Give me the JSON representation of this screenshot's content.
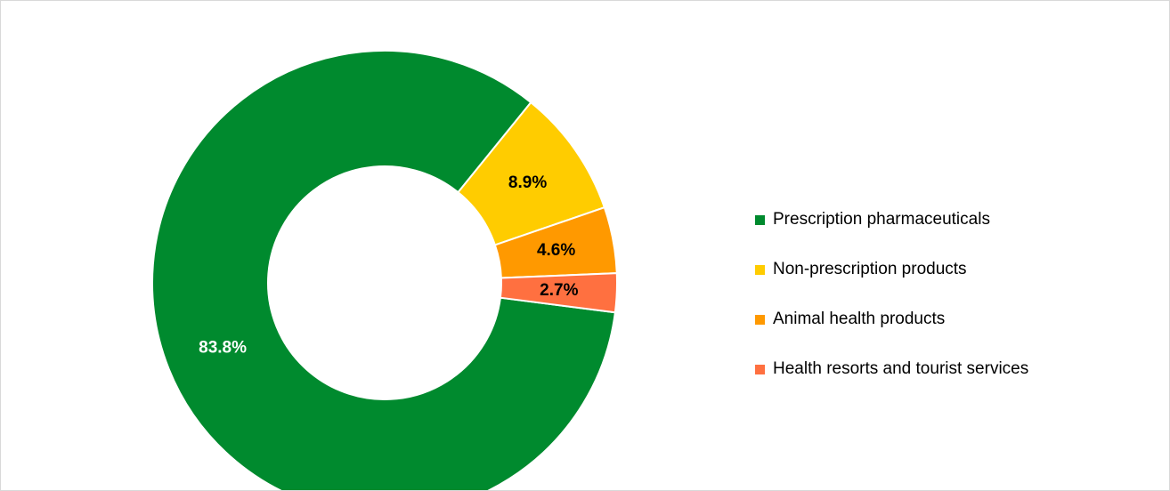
{
  "chart_data": {
    "type": "pie",
    "variant": "donut",
    "title": "",
    "categories": [
      "Prescription pharmaceuticals",
      "Non-prescription products",
      "Animal health products",
      "Health resorts and tourist services"
    ],
    "values": [
      83.8,
      8.9,
      4.6,
      2.7
    ],
    "data_labels": [
      "83.8%",
      "8.9%",
      "4.6%",
      "2.7%"
    ],
    "colors": [
      "#008a2e",
      "#ffcc00",
      "#ff9900",
      "#ff7040"
    ],
    "label_colors": [
      "#ffffff",
      "#000000",
      "#000000",
      "#000000"
    ],
    "legend_position": "right"
  }
}
